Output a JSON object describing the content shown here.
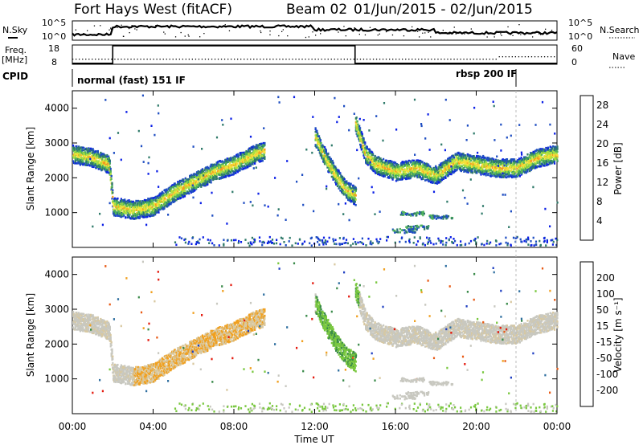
{
  "header": {
    "title": "Fort Hays West (fitACF)",
    "beam": "Beam 02",
    "date_range": "01/Jun/2015 - 02/Jun/2015"
  },
  "summary": {
    "left_labels": {
      "nsky": "N.Sky",
      "freq": "Freq.",
      "freq_unit": "[MHz]",
      "cpid": "CPID"
    },
    "right_labels": {
      "nsearch": "N.Search",
      "nave": "Nave"
    },
    "noise_ticks": {
      "top": "10^5",
      "bottom": "10^0"
    },
    "freq_ticks": [
      "18",
      "8"
    ],
    "nave_ticks": [
      "60",
      "0"
    ],
    "cpid_segments": [
      {
        "label": "normal (fast) 151 IF",
        "start_hour": 0
      },
      {
        "label": "rbsp 200 IF",
        "start_hour": 22
      }
    ]
  },
  "colors": {
    "power": [
      "#0b1fe6",
      "#1f4ec2",
      "#2f7a6a",
      "#4fb35a",
      "#a8e040",
      "#f5e03a",
      "#f59a1f",
      "#e83a16",
      "#e8110e"
    ],
    "velocity": [
      "#1f3fc2",
      "#2f6fa0",
      "#3a8a4a",
      "#7ac840",
      "#c8c8c0",
      "#d8c8a0",
      "#f0a020",
      "#e85a14",
      "#e41a0e"
    ]
  },
  "chart_data": [
    {
      "type": "heatmap",
      "panel": "power",
      "ylabel": "Slant Range [km]",
      "xlim": [
        0,
        24
      ],
      "ylim": [
        0,
        4500
      ],
      "yticks": [
        "1000",
        "2000",
        "3000",
        "4000"
      ],
      "colorbar": {
        "label": "Power [dB]",
        "ticks": [
          "4",
          "8",
          "12",
          "16",
          "20",
          "24",
          "28"
        ],
        "range": [
          0,
          30
        ]
      },
      "features": [
        {
          "name": "echo band",
          "hours": [
            0.0,
            1.0,
            1.8,
            2.0,
            3.0,
            4.0,
            5.0,
            6.0,
            7.0,
            8.0,
            9.0,
            9.5
          ],
          "range_km": [
            2700,
            2600,
            2400,
            1200,
            1100,
            1200,
            1600,
            1900,
            2200,
            2400,
            2700,
            2800
          ]
        },
        {
          "name": "descending streak",
          "hours": [
            12.0,
            12.5,
            13.0,
            13.5,
            14.0
          ],
          "range_km": [
            3200,
            2600,
            2100,
            1700,
            1500
          ]
        },
        {
          "name": "echo band",
          "hours": [
            14.0,
            14.5,
            15.0,
            16.0,
            17.0,
            18.0,
            19.0,
            20.0,
            21.0,
            22.0,
            23.0,
            24.0
          ],
          "range_km": [
            3600,
            2700,
            2400,
            2200,
            2300,
            2100,
            2500,
            2400,
            2300,
            2300,
            2600,
            2700
          ]
        }
      ]
    },
    {
      "type": "heatmap",
      "panel": "velocity",
      "ylabel": "Slant Range [km]",
      "xlabel": "Time UT",
      "xlim": [
        0,
        24
      ],
      "ylim": [
        0,
        4500
      ],
      "xticks": [
        "00:00",
        "04:00",
        "08:00",
        "12:00",
        "16:00",
        "20:00",
        "00:00"
      ],
      "yticks": [
        "1000",
        "2000",
        "3000",
        "4000"
      ],
      "colorbar": {
        "label": "Velocity [m s⁻¹]",
        "ticks": [
          "200",
          "100",
          "50",
          "15",
          "-15",
          "-50",
          "-100",
          "-200"
        ]
      }
    }
  ]
}
